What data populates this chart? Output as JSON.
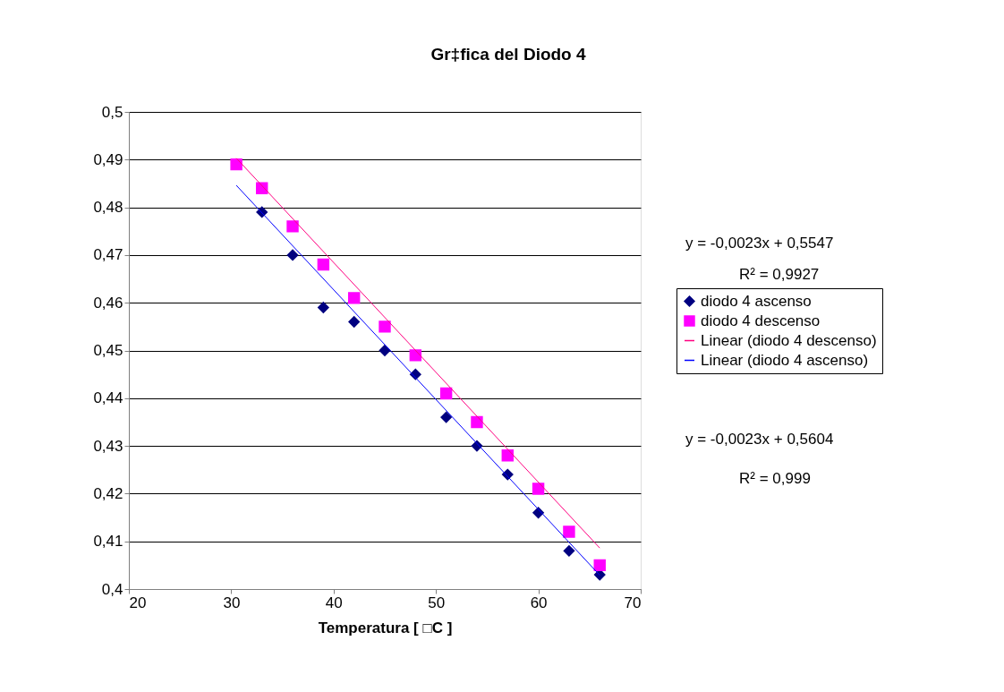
{
  "chart_data": {
    "type": "scatter",
    "title": "Gr‡fica del Diodo 4",
    "xlabel": "Temperatura [ □C ]",
    "xlim": [
      20,
      70
    ],
    "xticks": [
      20,
      30,
      40,
      50,
      60,
      70
    ],
    "ylim": [
      0.4,
      0.5
    ],
    "yticks": [
      {
        "value": 0.4,
        "label": "0,4"
      },
      {
        "value": 0.41,
        "label": "0,41"
      },
      {
        "value": 0.42,
        "label": "0,42"
      },
      {
        "value": 0.43,
        "label": "0,43"
      },
      {
        "value": 0.44,
        "label": "0,44"
      },
      {
        "value": 0.45,
        "label": "0,45"
      },
      {
        "value": 0.46,
        "label": "0,46"
      },
      {
        "value": 0.47,
        "label": "0,47"
      },
      {
        "value": 0.48,
        "label": "0,48"
      },
      {
        "value": 0.49,
        "label": "0,49"
      },
      {
        "value": 0.5,
        "label": "0,5"
      }
    ],
    "grid": "y",
    "legend": "right",
    "series": [
      {
        "name": "diodo 4 ascenso",
        "marker": "diamond",
        "color": "#000080",
        "x": [
          33,
          36,
          39,
          42,
          45,
          48,
          51,
          54,
          57,
          60,
          63,
          66
        ],
        "values": [
          0.479,
          0.47,
          0.459,
          0.456,
          0.45,
          0.445,
          0.436,
          0.43,
          0.424,
          0.416,
          0.408,
          0.403
        ]
      },
      {
        "name": "diodo 4 descenso",
        "marker": "square",
        "color": "#ff00ff",
        "x": [
          30.5,
          33,
          36,
          39,
          42,
          45,
          48,
          51,
          54,
          57,
          60,
          63,
          66
        ],
        "values": [
          0.489,
          0.484,
          0.476,
          0.468,
          0.461,
          0.455,
          0.449,
          0.441,
          0.435,
          0.428,
          0.421,
          0.412,
          0.405
        ]
      },
      {
        "name": "Linear (diodo 4 descenso)",
        "type": "line",
        "color": "#ff0080",
        "x": [
          30.5,
          66
        ],
        "values": [
          0.4903,
          0.4086
        ]
      },
      {
        "name": "Linear (diodo 4 ascenso)",
        "type": "line",
        "color": "#0000ff",
        "x": [
          30.5,
          66
        ],
        "values": [
          0.4846,
          0.4029
        ]
      }
    ],
    "annotations": [
      "y = -0,0023x + 0,5547",
      "R² = 0,9927",
      "y = -0,0023x + 0,5604",
      "R² = 0,999"
    ]
  }
}
